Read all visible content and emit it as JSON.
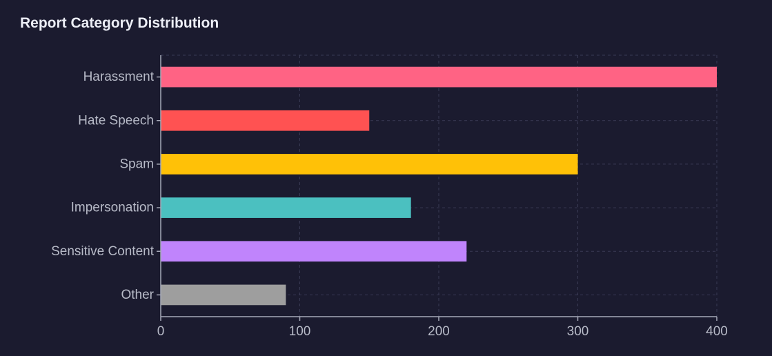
{
  "chart_data": {
    "type": "bar",
    "orientation": "horizontal",
    "title": "Report Category Distribution",
    "xlabel": "",
    "ylabel": "",
    "categories": [
      "Harassment",
      "Hate Speech",
      "Spam",
      "Impersonation",
      "Sensitive Content",
      "Other"
    ],
    "values": [
      400,
      150,
      300,
      180,
      220,
      90
    ],
    "colors": [
      "#ff6384",
      "#ff5252",
      "#ffc107",
      "#4bc0c0",
      "#c084fc",
      "#9e9e9e"
    ],
    "xlim": [
      0,
      400
    ],
    "xticks": [
      0,
      100,
      200,
      300,
      400
    ],
    "grid": true,
    "legend": "none"
  }
}
